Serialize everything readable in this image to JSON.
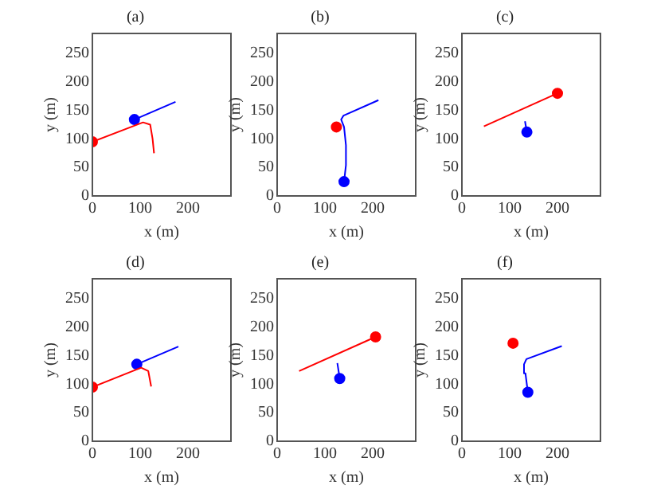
{
  "chart_data": [
    {
      "type": "line",
      "title": "(a)",
      "xlabel": "x (m)",
      "ylabel": "y (m)",
      "xlim": [
        0,
        290
      ],
      "ylim": [
        0,
        285
      ],
      "xticks": [
        0,
        100,
        200
      ],
      "yticks": [
        0,
        50,
        100,
        150,
        200,
        250
      ],
      "grid": false,
      "legend": false,
      "series": [
        {
          "color": "#ff0000",
          "marker": "none",
          "x": [
            0,
            106,
            121,
            126,
            129
          ],
          "values": [
            95,
            129,
            125,
            100,
            75
          ]
        },
        {
          "color": "#0000ff",
          "marker": "none",
          "x": [
            88,
            174
          ],
          "values": [
            134,
            165
          ]
        },
        {
          "type": "scatter",
          "color": "#ff0000",
          "marker": "circle",
          "x": [
            0
          ],
          "values": [
            95
          ]
        },
        {
          "type": "scatter",
          "color": "#0000ff",
          "marker": "circle",
          "x": [
            88
          ],
          "values": [
            134
          ]
        }
      ]
    },
    {
      "type": "line",
      "title": "(b)",
      "xlabel": "x (m)",
      "ylabel": "y (m)",
      "xlim": [
        0,
        290
      ],
      "ylim": [
        0,
        285
      ],
      "xticks": [
        0,
        100,
        200
      ],
      "yticks": [
        0,
        50,
        100,
        150,
        200,
        250
      ],
      "grid": false,
      "legend": false,
      "series": [
        {
          "color": "#0000ff",
          "marker": "none",
          "x": [
            140,
            144,
            144,
            140,
            134,
            139,
            212
          ],
          "values": [
            25,
            54,
            89,
            121,
            134,
            141,
            168
          ]
        },
        {
          "type": "scatter",
          "color": "#0000ff",
          "marker": "circle",
          "x": [
            140
          ],
          "values": [
            25
          ]
        },
        {
          "type": "scatter",
          "color": "#ff0000",
          "marker": "circle",
          "x": [
            124
          ],
          "values": [
            121
          ]
        }
      ]
    },
    {
      "type": "line",
      "title": "(c)",
      "xlabel": "x (m)",
      "ylabel": "y (m)",
      "xlim": [
        0,
        290
      ],
      "ylim": [
        0,
        285
      ],
      "xticks": [
        0,
        100,
        200
      ],
      "yticks": [
        0,
        50,
        100,
        150,
        200,
        250
      ],
      "grid": false,
      "legend": false,
      "series": [
        {
          "color": "#ff0000",
          "marker": "none",
          "x": [
            46,
            200
          ],
          "values": [
            122,
            180
          ]
        },
        {
          "color": "#0000ff",
          "marker": "none",
          "x": [
            132,
            136
          ],
          "values": [
            131,
            112
          ]
        },
        {
          "type": "scatter",
          "color": "#ff0000",
          "marker": "circle",
          "x": [
            200
          ],
          "values": [
            180
          ]
        },
        {
          "type": "scatter",
          "color": "#0000ff",
          "marker": "circle",
          "x": [
            136
          ],
          "values": [
            112
          ]
        }
      ]
    },
    {
      "type": "line",
      "title": "(d)",
      "xlabel": "x (m)",
      "ylabel": "y (m)",
      "xlim": [
        0,
        290
      ],
      "ylim": [
        0,
        285
      ],
      "xticks": [
        0,
        100,
        200
      ],
      "yticks": [
        0,
        50,
        100,
        150,
        200,
        250
      ],
      "grid": false,
      "legend": false,
      "series": [
        {
          "color": "#ff0000",
          "marker": "none",
          "x": [
            0,
            102,
            117,
            123
          ],
          "values": [
            95,
            129,
            123,
            96
          ]
        },
        {
          "color": "#0000ff",
          "marker": "none",
          "x": [
            93,
            180
          ],
          "values": [
            135,
            166
          ]
        },
        {
          "type": "scatter",
          "color": "#ff0000",
          "marker": "circle",
          "x": [
            0
          ],
          "values": [
            95
          ]
        },
        {
          "type": "scatter",
          "color": "#0000ff",
          "marker": "circle",
          "x": [
            93
          ],
          "values": [
            135
          ]
        }
      ]
    },
    {
      "type": "line",
      "title": "(e)",
      "xlabel": "x (m)",
      "ylabel": "y (m)",
      "xlim": [
        0,
        290
      ],
      "ylim": [
        0,
        285
      ],
      "xticks": [
        0,
        100,
        200
      ],
      "yticks": [
        0,
        50,
        100,
        150,
        200,
        250
      ],
      "grid": false,
      "legend": false,
      "series": [
        {
          "color": "#ff0000",
          "marker": "none",
          "x": [
            46,
            206
          ],
          "values": [
            123,
            183
          ]
        },
        {
          "color": "#0000ff",
          "marker": "none",
          "x": [
            126,
            131
          ],
          "values": [
            137,
            110
          ]
        },
        {
          "type": "scatter",
          "color": "#ff0000",
          "marker": "circle",
          "x": [
            206
          ],
          "values": [
            183
          ]
        },
        {
          "type": "scatter",
          "color": "#0000ff",
          "marker": "circle",
          "x": [
            131
          ],
          "values": [
            110
          ]
        }
      ]
    },
    {
      "type": "line",
      "title": "(f)",
      "xlabel": "x (m)",
      "ylabel": "y (m)",
      "xlim": [
        0,
        290
      ],
      "ylim": [
        0,
        285
      ],
      "xticks": [
        0,
        100,
        200
      ],
      "yticks": [
        0,
        50,
        100,
        150,
        200,
        250
      ],
      "grid": false,
      "legend": false,
      "series": [
        {
          "color": "#0000ff",
          "marker": "none",
          "x": [
            138,
            133,
            130,
            135,
            209
          ],
          "values": [
            86,
            119,
            135,
            144,
            167
          ]
        },
        {
          "type": "scatter",
          "color": "#ff0000",
          "marker": "circle",
          "x": [
            107
          ],
          "values": [
            172
          ]
        },
        {
          "type": "scatter",
          "color": "#0000ff",
          "marker": "circle",
          "x": [
            138
          ],
          "values": [
            86
          ]
        }
      ]
    }
  ]
}
